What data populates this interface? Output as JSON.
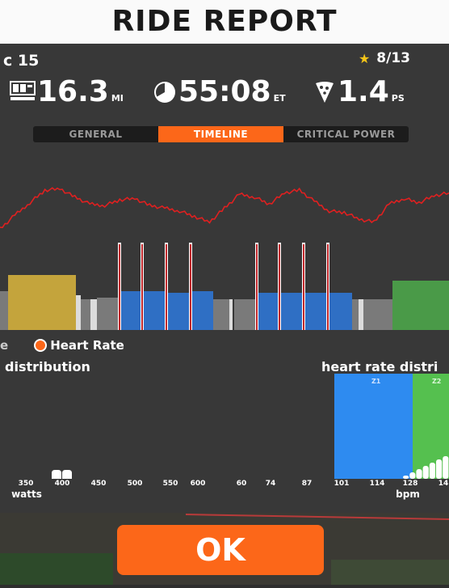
{
  "header": {
    "title": "RIDE REPORT"
  },
  "ride": {
    "date_partial": "c 15",
    "rank": "8/13"
  },
  "stats": {
    "distance": {
      "value": "16.3",
      "unit": "MI"
    },
    "time": {
      "value": "55:08",
      "unit": "ET"
    },
    "pizza": {
      "value": "1.4",
      "unit": "PS"
    }
  },
  "tabs": [
    {
      "label": "GENERAL",
      "active": false
    },
    {
      "label": "TIMELINE",
      "active": true
    },
    {
      "label": "CRITICAL POWER",
      "active": false
    }
  ],
  "legend": {
    "partial": "e",
    "heart_rate": "Heart Rate"
  },
  "power_distribution": {
    "title": "distribution",
    "ticks": [
      "350",
      "400",
      "450",
      "500",
      "550",
      "600"
    ],
    "unit": "watts"
  },
  "hr_distribution": {
    "title": "heart rate distri",
    "ticks": [
      "60",
      "74",
      "87",
      "101",
      "114",
      "128",
      "14"
    ],
    "unit": "bpm",
    "zones": [
      "Z1",
      "Z2"
    ]
  },
  "buttons": {
    "ok": "OK"
  },
  "colors": {
    "accent": "#fc6719",
    "zone_blue": "#2f6fc4",
    "zone_yellow": "#c4a43c",
    "zone_green": "#4a9a48",
    "zone_gray": "#7a7a7a",
    "heart_rate_line": "#e02020"
  },
  "chart_data": [
    {
      "type": "line",
      "title": "",
      "series": [
        {
          "name": "Heart Rate",
          "values": [
            78,
            98,
            116,
            134,
            136,
            124,
            114,
            112,
            120,
            122,
            112,
            108,
            104,
            96,
            88,
            108,
            128,
            124,
            114,
            130,
            134,
            118,
            104,
            102,
            92,
            88,
            114,
            122,
            116,
            126,
            130
          ]
        }
      ]
    },
    {
      "type": "bar",
      "title": "",
      "series": [
        {
          "name": "Heart Rate",
          "values": [
            0,
            0,
            0,
            0,
            0,
            1,
            2,
            3,
            4,
            5,
            6,
            7
          ]
        }
      ]
    }
  ]
}
